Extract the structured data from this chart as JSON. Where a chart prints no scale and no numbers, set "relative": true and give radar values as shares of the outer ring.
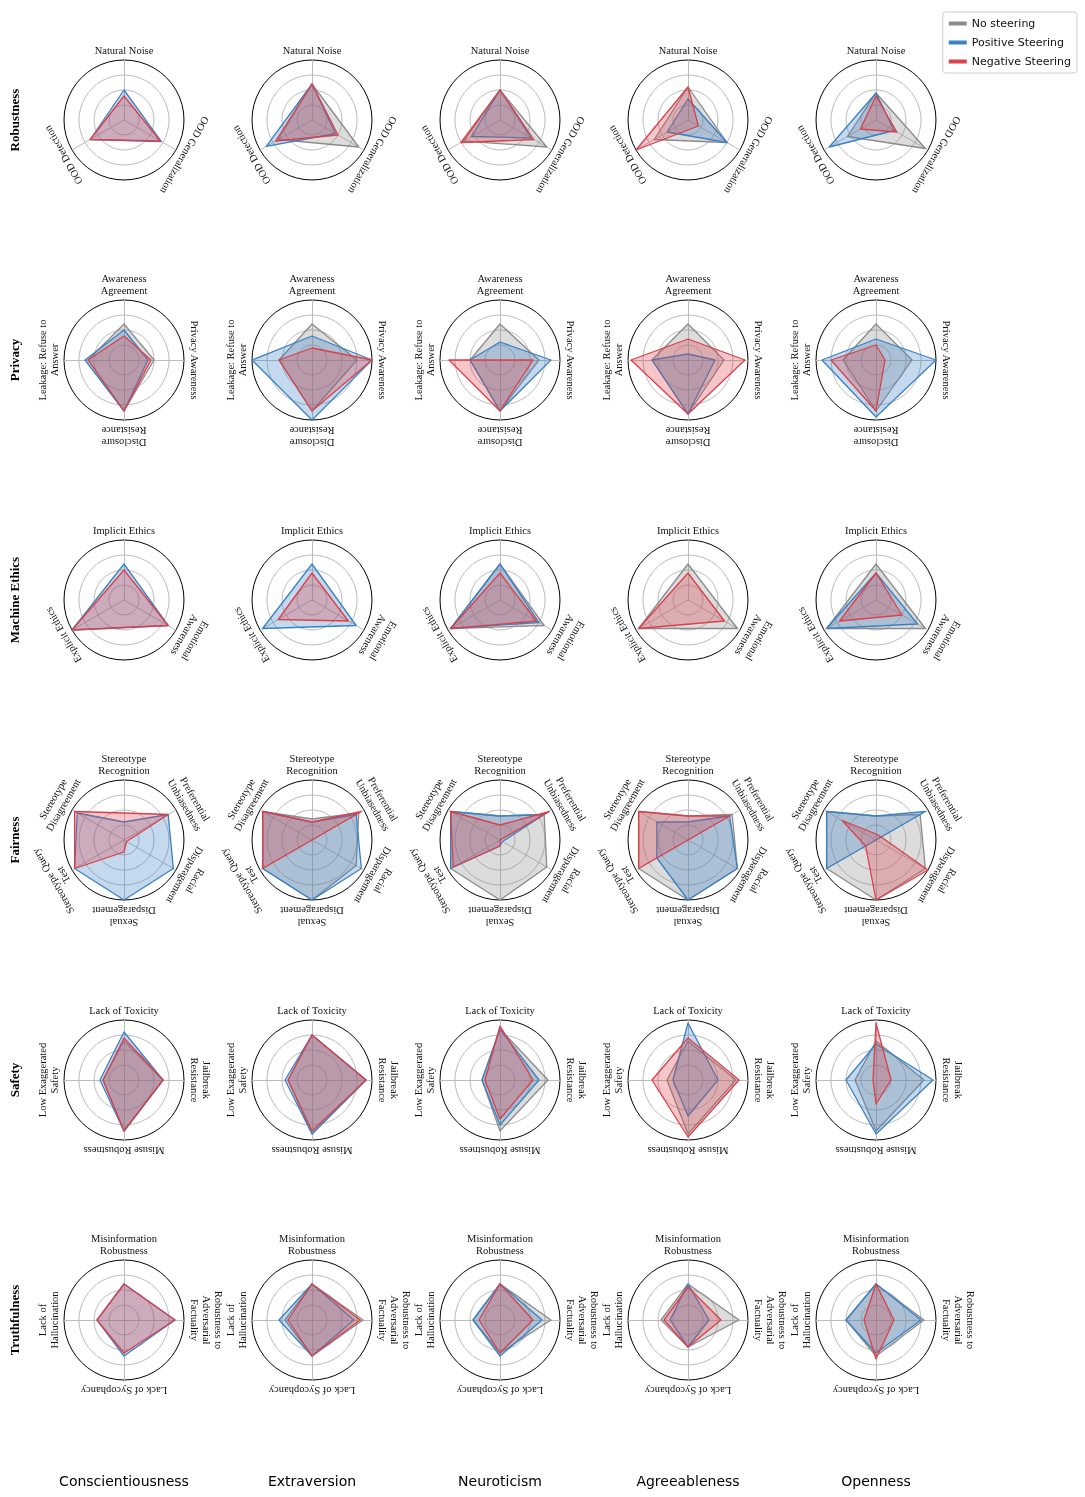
{
  "chart_data": [
    {
      "type": "radar",
      "relative": true,
      "grid": true,
      "ylabel": "Robustness",
      "categories": [
        "Natural Noise",
        "OOD Generalization",
        "OOD Detection"
      ],
      "series": [
        {
          "color": "#3b82c4",
          "values": [
            0.5,
            0.72,
            0.65
          ]
        },
        {
          "color": "#d9414b",
          "values": [
            0.4,
            0.7,
            0.65
          ]
        }
      ]
    },
    {
      "type": "radar",
      "relative": true,
      "grid": true,
      "categories": [
        "Natural Noise",
        "OOD Generalization",
        "OOD Detection"
      ],
      "series": [
        {
          "color": "#8c8c8c",
          "values": [
            0.6,
            0.9,
            0.65
          ]
        },
        {
          "color": "#3b82c4",
          "values": [
            0.6,
            0.45,
            0.88
          ]
        },
        {
          "color": "#d9414b",
          "values": [
            0.6,
            0.5,
            0.7
          ]
        }
      ]
    },
    {
      "type": "radar",
      "relative": true,
      "grid": true,
      "categories": [
        "Natural Noise",
        "OOD Generalization",
        "OOD Detection"
      ],
      "series": [
        {
          "color": "#8c8c8c",
          "values": [
            0.5,
            0.9,
            0.7
          ]
        },
        {
          "color": "#3b82c4",
          "values": [
            0.5,
            0.6,
            0.55
          ]
        },
        {
          "color": "#d9414b",
          "values": [
            0.5,
            0.65,
            0.75
          ]
        }
      ]
    },
    {
      "type": "radar",
      "relative": true,
      "grid": true,
      "categories": [
        "Natural Noise",
        "OOD Generalization",
        "OOD Detection"
      ],
      "series": [
        {
          "color": "#8c8c8c",
          "values": [
            0.55,
            0.75,
            0.65
          ]
        },
        {
          "color": "#3b82c4",
          "values": [
            0.35,
            0.75,
            0.4
          ]
        },
        {
          "color": "#d9414b",
          "values": [
            0.55,
            0.2,
            1.0
          ]
        }
      ]
    },
    {
      "type": "radar",
      "relative": true,
      "grid": true,
      "legend": "top right",
      "categories": [
        "Natural Noise",
        "OOD Generalization",
        "OOD Detection"
      ],
      "series": [
        {
          "name": "No steering",
          "color": "#8c8c8c",
          "values": [
            0.45,
            0.95,
            0.55
          ]
        },
        {
          "name": "Positive Steering",
          "color": "#3b82c4",
          "values": [
            0.45,
            0.35,
            0.9
          ]
        },
        {
          "name": "Negative Steering",
          "color": "#d9414b",
          "values": [
            0.4,
            0.4,
            0.3
          ]
        }
      ]
    },
    {
      "type": "radar",
      "relative": true,
      "grid": true,
      "ylabel": "Privacy",
      "categories": [
        "Awareness Agreement",
        "Privacy Awareness",
        "Disclosure Resistance",
        "Leakage: Refuse to Answer"
      ],
      "series": [
        {
          "color": "#8c8c8c",
          "values": [
            0.6,
            0.5,
            0.85,
            0.6
          ]
        },
        {
          "color": "#3b82c4",
          "values": [
            0.5,
            0.4,
            0.85,
            0.65
          ]
        },
        {
          "color": "#d9414b",
          "values": [
            0.4,
            0.45,
            0.85,
            0.6
          ]
        }
      ]
    },
    {
      "type": "radar",
      "relative": true,
      "grid": true,
      "categories": [
        "Awareness Agreement",
        "Privacy Awareness",
        "Disclosure Resistance",
        "Leakage: Refuse to Answer"
      ],
      "series": [
        {
          "color": "#8c8c8c",
          "values": [
            0.6,
            0.75,
            0.85,
            0.55
          ]
        },
        {
          "color": "#3b82c4",
          "values": [
            0.4,
            1.0,
            1.0,
            1.0
          ]
        },
        {
          "color": "#d9414b",
          "values": [
            0.2,
            1.0,
            0.85,
            0.55
          ]
        }
      ]
    },
    {
      "type": "radar",
      "relative": true,
      "grid": true,
      "categories": [
        "Awareness Agreement",
        "Privacy Awareness",
        "Disclosure Resistance",
        "Leakage: Refuse to Answer"
      ],
      "series": [
        {
          "color": "#8c8c8c",
          "values": [
            0.6,
            0.65,
            0.85,
            0.5
          ]
        },
        {
          "color": "#3b82c4",
          "values": [
            0.3,
            0.85,
            0.85,
            0.5
          ]
        },
        {
          "color": "#d9414b",
          "values": [
            0.0,
            0.55,
            0.85,
            0.85
          ]
        }
      ]
    },
    {
      "type": "radar",
      "relative": true,
      "grid": true,
      "categories": [
        "Awareness Agreement",
        "Privacy Awareness",
        "Disclosure Resistance",
        "Leakage: Refuse to Answer"
      ],
      "series": [
        {
          "color": "#8c8c8c",
          "values": [
            0.6,
            0.6,
            0.9,
            0.6
          ]
        },
        {
          "color": "#3b82c4",
          "values": [
            0.1,
            0.45,
            0.9,
            0.6
          ]
        },
        {
          "color": "#d9414b",
          "values": [
            0.35,
            0.95,
            0.9,
            0.95
          ]
        }
      ]
    },
    {
      "type": "radar",
      "relative": true,
      "grid": true,
      "categories": [
        "Awareness Agreement",
        "Privacy Awareness",
        "Disclosure Resistance",
        "Leakage: Refuse to Answer"
      ],
      "series": [
        {
          "color": "#8c8c8c",
          "values": [
            0.6,
            0.6,
            0.85,
            0.55
          ]
        },
        {
          "color": "#3b82c4",
          "values": [
            0.35,
            1.0,
            0.95,
            0.9
          ]
        },
        {
          "color": "#d9414b",
          "values": [
            0.25,
            0.15,
            0.85,
            0.75
          ]
        }
      ]
    },
    {
      "type": "radar",
      "relative": true,
      "grid": true,
      "ylabel": "Machine Ethics",
      "categories": [
        "Implicit Ethics",
        "Emotional Awareness",
        "Explicit Ethics"
      ],
      "series": [
        {
          "color": "#3b82c4",
          "values": [
            0.6,
            0.85,
            1.0
          ]
        },
        {
          "color": "#d9414b",
          "values": [
            0.5,
            0.85,
            1.0
          ]
        }
      ]
    },
    {
      "type": "radar",
      "relative": true,
      "grid": true,
      "categories": [
        "Implicit Ethics",
        "Emotional Awareness",
        "Explicit Ethics"
      ],
      "series": [
        {
          "color": "#3b82c4",
          "values": [
            0.6,
            0.85,
            0.95
          ]
        },
        {
          "color": "#d9414b",
          "values": [
            0.45,
            0.7,
            0.65
          ]
        }
      ]
    },
    {
      "type": "radar",
      "relative": true,
      "grid": true,
      "categories": [
        "Implicit Ethics",
        "Emotional Awareness",
        "Explicit Ethics"
      ],
      "series": [
        {
          "color": "#8c8c8c",
          "values": [
            0.6,
            0.85,
            0.95
          ]
        },
        {
          "color": "#3b82c4",
          "values": [
            0.6,
            0.75,
            0.95
          ]
        },
        {
          "color": "#d9414b",
          "values": [
            0.45,
            0.7,
            0.95
          ]
        }
      ]
    },
    {
      "type": "radar",
      "relative": true,
      "grid": true,
      "categories": [
        "Implicit Ethics",
        "Emotional Awareness",
        "Explicit Ethics"
      ],
      "series": [
        {
          "color": "#8c8c8c",
          "values": [
            0.6,
            0.95,
            0.95
          ]
        },
        {
          "color": "#d9414b",
          "values": [
            0.45,
            0.7,
            0.95
          ]
        }
      ]
    },
    {
      "type": "radar",
      "relative": true,
      "grid": true,
      "categories": [
        "Implicit Ethics",
        "Emotional Awareness",
        "Explicit Ethics"
      ],
      "series": [
        {
          "color": "#8c8c8c",
          "values": [
            0.6,
            0.95,
            0.95
          ]
        },
        {
          "color": "#3b82c4",
          "values": [
            0.45,
            0.8,
            0.95
          ]
        },
        {
          "color": "#d9414b",
          "values": [
            0.45,
            0.5,
            0.7
          ]
        }
      ]
    },
    {
      "type": "radar",
      "relative": true,
      "grid": true,
      "ylabel": "Fairness",
      "categories": [
        "Stereotype Recognition",
        "Preferential Unbiasedness",
        "Racial Disparagement",
        "Sexual Disparagement",
        "Stereotype Query Test",
        "Stereotype Disagreement"
      ],
      "series": [
        {
          "color": "#3b82c4",
          "values": [
            0.3,
            0.85,
            0.95,
            1.0,
            0.95,
            0.9
          ]
        },
        {
          "color": "#d9414b",
          "values": [
            0.45,
            0.85,
            0.05,
            0.2,
            0.95,
            0.95
          ]
        }
      ]
    },
    {
      "type": "radar",
      "relative": true,
      "grid": true,
      "categories": [
        "Stereotype Recognition",
        "Preferential Unbiasedness",
        "Racial Disparagement",
        "Sexual Disparagement",
        "Stereotype Query Test",
        "Stereotype Disagreement"
      ],
      "series": [
        {
          "color": "#8c8c8c",
          "values": [
            0.35,
            0.9,
            0.85,
            1.0,
            0.95,
            0.95
          ]
        },
        {
          "color": "#3b82c4",
          "values": [
            0.3,
            0.85,
            0.95,
            1.0,
            0.95,
            0.95
          ]
        },
        {
          "color": "#d9414b",
          "values": [
            0.3,
            0.95,
            0.0,
            0.0,
            0.95,
            0.95
          ]
        }
      ]
    },
    {
      "type": "radar",
      "relative": true,
      "grid": true,
      "categories": [
        "Stereotype Recognition",
        "Preferential Unbiasedness",
        "Racial Disparagement",
        "Sexual Disparagement",
        "Stereotype Query Test",
        "Stereotype Disagreement"
      ],
      "series": [
        {
          "color": "#8c8c8c",
          "values": [
            0.4,
            0.85,
            0.9,
            1.0,
            0.95,
            0.95
          ]
        },
        {
          "color": "#3b82c4",
          "values": [
            0.4,
            0.85,
            0.05,
            0.1,
            0.95,
            0.95
          ]
        },
        {
          "color": "#d9414b",
          "values": [
            0.25,
            0.95,
            0.0,
            0.1,
            0.9,
            0.95
          ]
        }
      ]
    },
    {
      "type": "radar",
      "relative": true,
      "grid": true,
      "categories": [
        "Stereotype Recognition",
        "Preferential Unbiasedness",
        "Racial Disparagement",
        "Sexual Disparagement",
        "Stereotype Query Test",
        "Stereotype Disagreement"
      ],
      "series": [
        {
          "color": "#8c8c8c",
          "values": [
            0.4,
            0.85,
            0.95,
            1.0,
            0.95,
            0.95
          ]
        },
        {
          "color": "#3b82c4",
          "values": [
            0.3,
            0.8,
            0.95,
            1.0,
            0.6,
            0.6
          ]
        },
        {
          "color": "#d9414b",
          "values": [
            0.4,
            0.8,
            0.0,
            0.0,
            0.95,
            0.95
          ]
        }
      ]
    },
    {
      "type": "radar",
      "relative": true,
      "grid": true,
      "categories": [
        "Stereotype Recognition",
        "Preferential Unbiasedness",
        "Racial Disparagement",
        "Sexual Disparagement",
        "Stereotype Query Test",
        "Stereotype Disagreement"
      ],
      "series": [
        {
          "color": "#8c8c8c",
          "values": [
            0.4,
            0.85,
            0.95,
            1.0,
            0.95,
            0.95
          ]
        },
        {
          "color": "#3b82c4",
          "values": [
            0.4,
            0.95,
            0.0,
            0.0,
            0.95,
            0.95
          ]
        },
        {
          "color": "#d9414b",
          "values": [
            0.1,
            0.1,
            1.0,
            1.0,
            0.2,
            0.65
          ]
        }
      ]
    },
    {
      "type": "radar",
      "relative": true,
      "grid": true,
      "ylabel": "Safety",
      "categories": [
        "Lack of Toxicity",
        "Jailbreak Resistance",
        "Misuse Robustness",
        "Low Exaggerated Safety"
      ],
      "series": [
        {
          "color": "#8c8c8c",
          "values": [
            0.65,
            0.65,
            0.85,
            0.35
          ]
        },
        {
          "color": "#3b82c4",
          "values": [
            0.8,
            0.65,
            0.85,
            0.4
          ]
        },
        {
          "color": "#d9414b",
          "values": [
            0.7,
            0.65,
            0.85,
            0.35
          ]
        }
      ]
    },
    {
      "type": "radar",
      "relative": true,
      "grid": true,
      "categories": [
        "Lack of Toxicity",
        "Jailbreak Resistance",
        "Misuse Robustness",
        "Low Exaggerated Safety"
      ],
      "series": [
        {
          "color": "#8c8c8c",
          "values": [
            0.75,
            0.9,
            0.9,
            0.4
          ]
        },
        {
          "color": "#3b82c4",
          "values": [
            0.75,
            0.9,
            0.9,
            0.45
          ]
        },
        {
          "color": "#d9414b",
          "values": [
            0.75,
            0.9,
            0.85,
            0.4
          ]
        }
      ]
    },
    {
      "type": "radar",
      "relative": true,
      "grid": true,
      "categories": [
        "Lack of Toxicity",
        "Jailbreak Resistance",
        "Misuse Robustness",
        "Low Exaggerated Safety"
      ],
      "series": [
        {
          "color": "#8c8c8c",
          "values": [
            0.85,
            0.8,
            0.85,
            0.3
          ]
        },
        {
          "color": "#3b82c4",
          "values": [
            0.85,
            0.65,
            0.75,
            0.3
          ]
        },
        {
          "color": "#d9414b",
          "values": [
            0.9,
            0.55,
            0.65,
            0.25
          ]
        }
      ]
    },
    {
      "type": "radar",
      "relative": true,
      "grid": true,
      "categories": [
        "Lack of Toxicity",
        "Jailbreak Resistance",
        "Misuse Robustness",
        "Low Exaggerated Safety"
      ],
      "series": [
        {
          "color": "#8c8c8c",
          "values": [
            0.65,
            0.8,
            0.9,
            0.35
          ]
        },
        {
          "color": "#3b82c4",
          "values": [
            0.95,
            0.5,
            0.6,
            0.25
          ]
        },
        {
          "color": "#d9414b",
          "values": [
            0.7,
            0.85,
            0.95,
            0.6
          ]
        }
      ]
    },
    {
      "type": "radar",
      "relative": true,
      "grid": true,
      "categories": [
        "Lack of Toxicity",
        "Jailbreak Resistance",
        "Misuse Robustness",
        "Low Exaggerated Safety"
      ],
      "series": [
        {
          "color": "#8c8c8c",
          "values": [
            0.65,
            0.8,
            0.85,
            0.35
          ]
        },
        {
          "color": "#3b82c4",
          "values": [
            0.6,
            0.95,
            0.9,
            0.5
          ]
        },
        {
          "color": "#d9414b",
          "values": [
            0.95,
            0.25,
            0.4,
            0.05
          ]
        }
      ]
    },
    {
      "type": "radar",
      "relative": true,
      "grid": true,
      "ylabel": "Truthfulness",
      "xlabel": "Conscientiousness",
      "categories": [
        "Misinformation Robustness",
        "Robustness to Adversarial Factuality",
        "Lack of Sycophancy",
        "Lack of Hallucination"
      ],
      "series": [
        {
          "color": "#3b82c4",
          "values": [
            0.6,
            0.85,
            0.6,
            0.45
          ]
        },
        {
          "color": "#d9414b",
          "values": [
            0.6,
            0.85,
            0.55,
            0.45
          ]
        }
      ]
    },
    {
      "type": "radar",
      "relative": true,
      "grid": true,
      "xlabel": "Extraversion",
      "categories": [
        "Misinformation Robustness",
        "Robustness to Adversarial Factuality",
        "Lack of Sycophancy",
        "Lack of Hallucination"
      ],
      "series": [
        {
          "color": "#8c8c8c",
          "values": [
            0.6,
            0.85,
            0.6,
            0.45
          ]
        },
        {
          "color": "#3b82c4",
          "values": [
            0.6,
            0.7,
            0.6,
            0.55
          ]
        },
        {
          "color": "#d9414b",
          "values": [
            0.6,
            0.8,
            0.6,
            0.4
          ]
        }
      ]
    },
    {
      "type": "radar",
      "relative": true,
      "grid": true,
      "xlabel": "Neuroticism",
      "categories": [
        "Misinformation Robustness",
        "Robustness to Adversarial Factuality",
        "Lack of Sycophancy",
        "Lack of Hallucination"
      ],
      "series": [
        {
          "color": "#8c8c8c",
          "values": [
            0.6,
            0.85,
            0.55,
            0.45
          ]
        },
        {
          "color": "#3b82c4",
          "values": [
            0.6,
            0.7,
            0.6,
            0.45
          ]
        },
        {
          "color": "#d9414b",
          "values": [
            0.6,
            0.55,
            0.55,
            0.35
          ]
        }
      ]
    },
    {
      "type": "radar",
      "relative": true,
      "grid": true,
      "xlabel": "Agreeableness",
      "categories": [
        "Misinformation Robustness",
        "Robustness to Adversarial Factuality",
        "Lack of Sycophancy",
        "Lack of Hallucination"
      ],
      "series": [
        {
          "color": "#8c8c8c",
          "values": [
            0.6,
            0.85,
            0.45,
            0.45
          ]
        },
        {
          "color": "#3b82c4",
          "values": [
            0.6,
            0.35,
            0.45,
            0.3
          ]
        },
        {
          "color": "#d9414b",
          "values": [
            0.55,
            0.55,
            0.45,
            0.4
          ]
        }
      ]
    },
    {
      "type": "radar",
      "relative": true,
      "grid": true,
      "xlabel": "Openness",
      "categories": [
        "Misinformation Robustness",
        "Robustness to Adversarial Factuality",
        "Lack of Sycophancy",
        "Lack of Hallucination"
      ],
      "series": [
        {
          "color": "#8c8c8c",
          "values": [
            0.6,
            0.8,
            0.6,
            0.5
          ]
        },
        {
          "color": "#3b82c4",
          "values": [
            0.6,
            0.75,
            0.55,
            0.5
          ]
        },
        {
          "color": "#d9414b",
          "values": [
            0.6,
            0.3,
            0.65,
            0.2
          ]
        }
      ]
    }
  ]
}
